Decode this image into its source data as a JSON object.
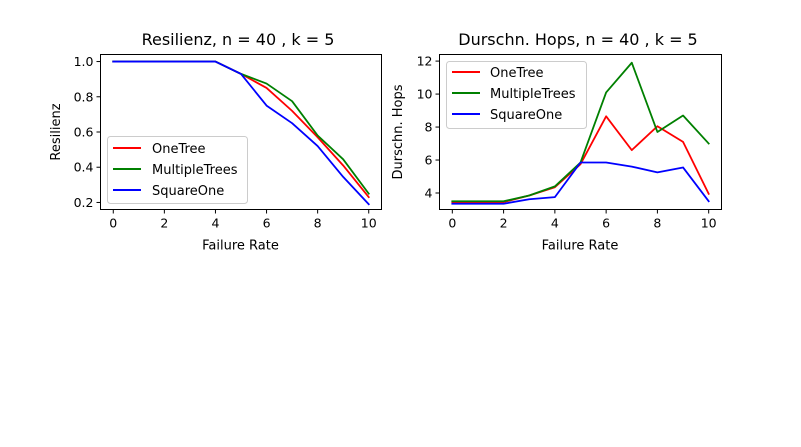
{
  "chart_data": [
    {
      "type": "line",
      "title": "Resilienz, n = 40 , k = 5",
      "xlabel": "Failure Rate",
      "ylabel": "Resilienz",
      "xlim": [
        -0.5,
        10.5
      ],
      "ylim": [
        0.16,
        1.04
      ],
      "xticks": [
        0,
        2,
        4,
        6,
        8,
        10
      ],
      "yticks": [
        0.2,
        0.4,
        0.6,
        0.8,
        1.0
      ],
      "ytick_labels": [
        "0.2",
        "0.4",
        "0.6",
        "0.8",
        "1.0"
      ],
      "legend_position": "lower-left",
      "grid": false,
      "x": [
        0,
        1,
        2,
        3,
        4,
        5,
        6,
        7,
        8,
        9,
        10
      ],
      "series": [
        {
          "name": "OneTree",
          "color": "#ff0000",
          "values": [
            1.0,
            1.0,
            1.0,
            1.0,
            1.0,
            0.93,
            0.85,
            0.72,
            0.57,
            0.41,
            0.23
          ]
        },
        {
          "name": "MultipleTrees",
          "color": "#008000",
          "values": [
            1.0,
            1.0,
            1.0,
            1.0,
            1.0,
            0.93,
            0.875,
            0.775,
            0.58,
            0.445,
            0.25
          ]
        },
        {
          "name": "SquareOne",
          "color": "#0000ff",
          "values": [
            1.0,
            1.0,
            1.0,
            1.0,
            1.0,
            0.93,
            0.75,
            0.65,
            0.52,
            0.345,
            0.19
          ]
        }
      ]
    },
    {
      "type": "line",
      "title": "Durschn. Hops, n = 40 , k = 5",
      "xlabel": "Failure Rate",
      "ylabel": "Durschn. Hops",
      "xlim": [
        -0.5,
        10.5
      ],
      "ylim": [
        3.0,
        12.4
      ],
      "xticks": [
        0,
        2,
        4,
        6,
        8,
        10
      ],
      "yticks": [
        4,
        6,
        8,
        10,
        12
      ],
      "ytick_labels": [
        "4",
        "6",
        "8",
        "10",
        "12"
      ],
      "legend_position": "upper-left",
      "grid": false,
      "x": [
        0,
        1,
        2,
        3,
        4,
        5,
        6,
        7,
        8,
        9,
        10
      ],
      "series": [
        {
          "name": "OneTree",
          "color": "#ff0000",
          "values": [
            3.45,
            3.45,
            3.45,
            3.85,
            4.35,
            5.75,
            8.65,
            6.6,
            8.05,
            7.1,
            3.95
          ]
        },
        {
          "name": "MultipleTrees",
          "color": "#008000",
          "values": [
            3.5,
            3.5,
            3.5,
            3.85,
            4.4,
            5.85,
            10.1,
            11.9,
            7.7,
            8.7,
            7.0
          ]
        },
        {
          "name": "SquareOne",
          "color": "#0000ff",
          "values": [
            3.35,
            3.35,
            3.35,
            3.62,
            3.75,
            5.85,
            5.85,
            5.6,
            5.25,
            5.55,
            3.5
          ]
        }
      ]
    }
  ]
}
